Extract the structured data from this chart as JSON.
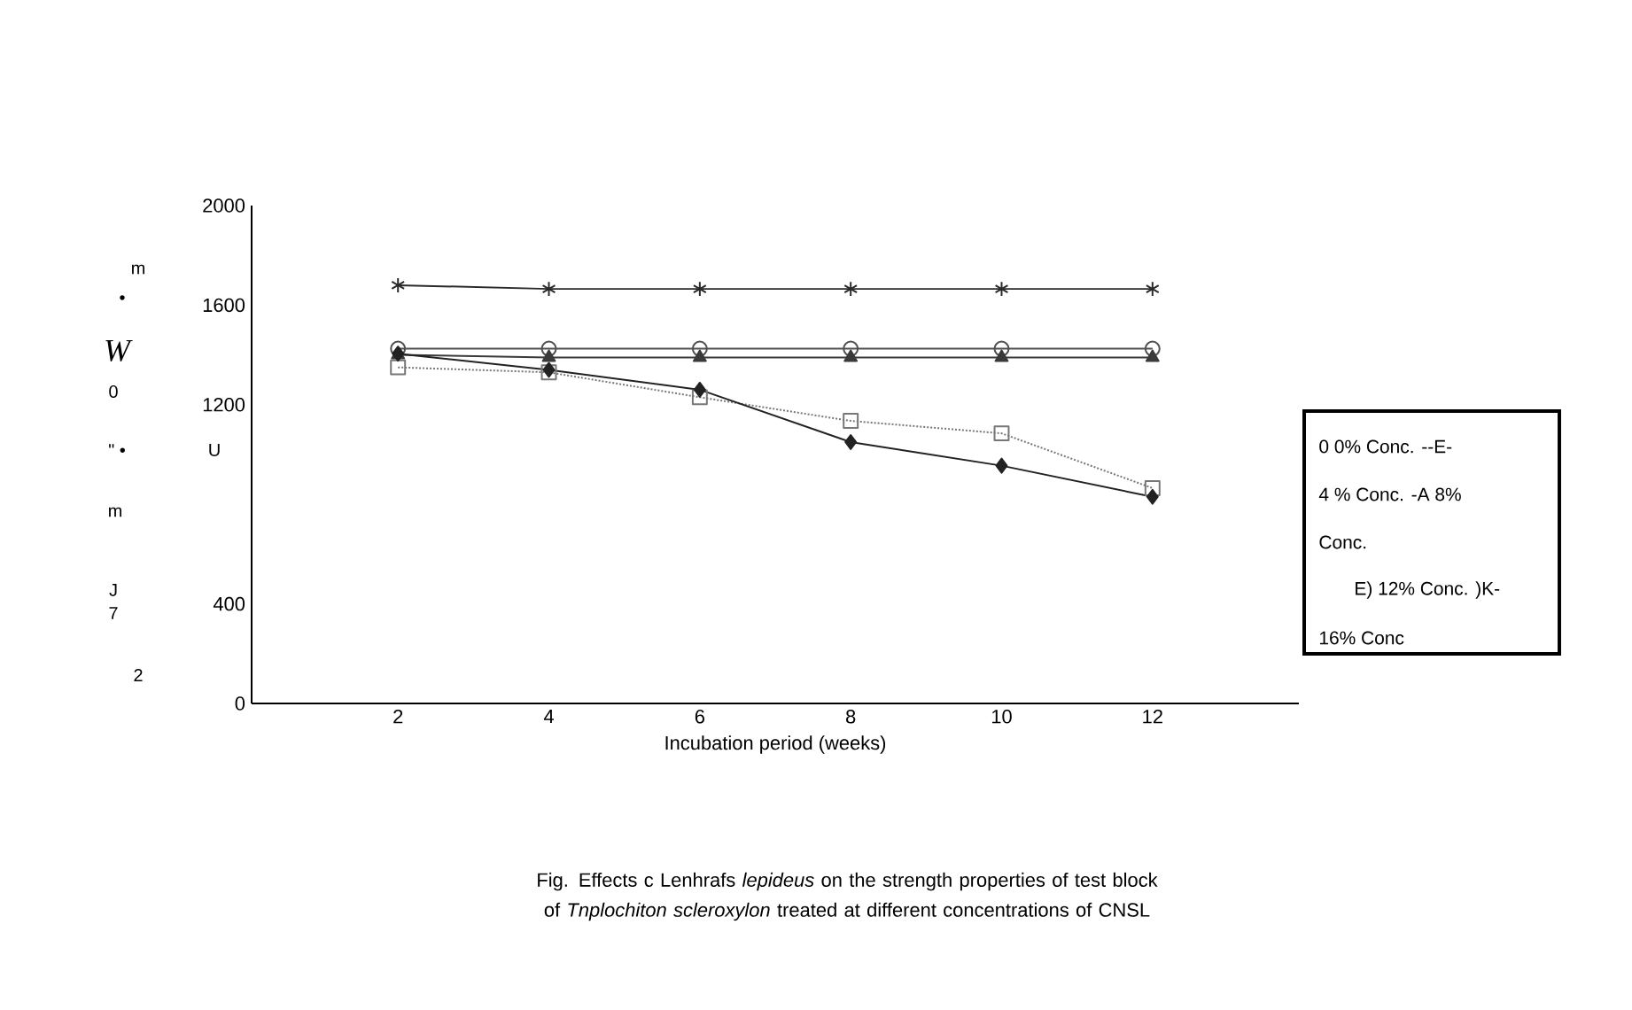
{
  "chart_data": {
    "type": "line",
    "title": "Fig. Effects c Lenhrafs *lepideus* on the strength properties of test block of *Tnplochiton scleroxylon* treated at different concentrations of CNSL",
    "xlabel": "Incubation period (weeks)",
    "categories": [
      "2",
      "4",
      "6",
      "8",
      "10",
      "12"
    ],
    "ylim": [
      0,
      2000
    ],
    "yticks": [
      0,
      400,
      1200,
      1600,
      2000
    ],
    "series": [
      {
        "color": "#222222",
        "marker": "diamond",
        "line_style": "solid",
        "values": [
          1405,
          1340,
          1260,
          1050,
          955,
          830
        ]
      },
      {
        "color": "#777777",
        "marker": "square",
        "line_style": "dotted",
        "values": [
          1350,
          1330,
          1230,
          1135,
          1085,
          865
        ]
      },
      {
        "color": "#3a3a3a",
        "marker": "triangle",
        "line_style": "solid",
        "values": [
          1400,
          1390,
          1390,
          1390,
          1390,
          1390
        ]
      },
      {
        "color": "#505050",
        "marker": "circle",
        "line_style": "solid",
        "values": [
          1425,
          1425,
          1425,
          1425,
          1425,
          1425
        ]
      },
      {
        "color": "#2a2a2a",
        "marker": "cross",
        "line_style": "solid",
        "values": [
          1680,
          1665,
          1665,
          1665,
          1665,
          1665
        ]
      }
    ],
    "annotations": [
      "0 0% Conc. --E-",
      "4 % Conc. -A 8%",
      "Conc.",
      "E) 12% Conc. )K-",
      "16% Conc",
      "m",
      "•",
      "W",
      "0",
      "\" •",
      "U",
      "m",
      "J",
      "7",
      "2"
    ]
  }
}
